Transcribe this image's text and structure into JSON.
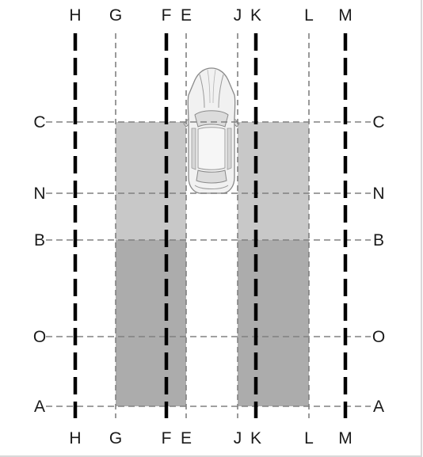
{
  "vertical_lines": [
    {
      "id": "H",
      "top_label": "H",
      "bottom_label": "H",
      "style": "heavy"
    },
    {
      "id": "G",
      "top_label": "G",
      "bottom_label": "G",
      "style": "light"
    },
    {
      "id": "F",
      "top_label": "F",
      "bottom_label": "F",
      "style": "heavy"
    },
    {
      "id": "E",
      "top_label": "E",
      "bottom_label": "E",
      "style": "light"
    },
    {
      "id": "J",
      "top_label": "J",
      "bottom_label": "J",
      "style": "light"
    },
    {
      "id": "K",
      "top_label": "K",
      "bottom_label": "K",
      "style": "heavy"
    },
    {
      "id": "L",
      "top_label": "L",
      "bottom_label": "L",
      "style": "light"
    },
    {
      "id": "M",
      "top_label": "M",
      "bottom_label": "M",
      "style": "heavy"
    }
  ],
  "horizontal_lines": [
    {
      "id": "C",
      "left_label": "C",
      "right_label": "C"
    },
    {
      "id": "N",
      "left_label": "N",
      "right_label": "N"
    },
    {
      "id": "B",
      "left_label": "B",
      "right_label": "B"
    },
    {
      "id": "O",
      "left_label": "O",
      "right_label": "O"
    },
    {
      "id": "A",
      "left_label": "A",
      "right_label": "A"
    }
  ],
  "zones": [
    {
      "name": "left-zone-upper",
      "x_from": "G",
      "x_to": "E",
      "y_from": "C",
      "y_to": "B",
      "shade": "light"
    },
    {
      "name": "left-zone-lower",
      "x_from": "G",
      "x_to": "E",
      "y_from": "B",
      "y_to": "A",
      "shade": "dark"
    },
    {
      "name": "right-zone-upper",
      "x_from": "J",
      "x_to": "L",
      "y_from": "C",
      "y_to": "B",
      "shade": "light"
    },
    {
      "name": "right-zone-lower",
      "x_from": "J",
      "x_to": "L",
      "y_from": "B",
      "y_to": "A",
      "shade": "dark"
    }
  ],
  "colors": {
    "zone_light": "#c8c8c8",
    "zone_dark": "#acacac",
    "heavy_line": "#000000",
    "light_line": "#808080",
    "label": "#1a1a1a"
  },
  "car": {
    "icon": "car-top-view-icon"
  }
}
